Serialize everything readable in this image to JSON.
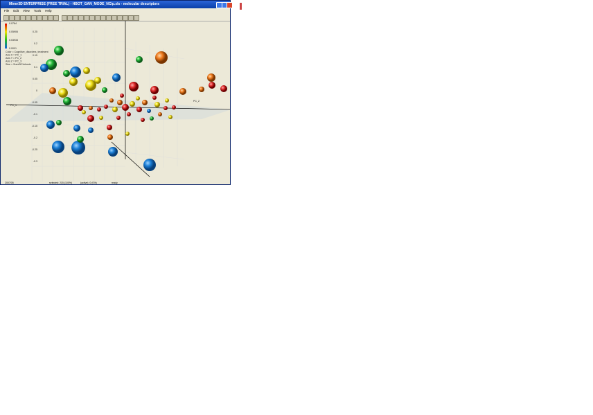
{
  "window": {
    "title": "Miner3D ENTERPRISE (FREE TRIAL) - HBOT_GAN_MODE_NCip.xls - molecular descriptors"
  },
  "menu": [
    "File",
    "Edit",
    "View",
    "Tools",
    "Help"
  ],
  "legend": {
    "scale": [
      "0.0784",
      "0.05906",
      "0.03933",
      "0.0001"
    ],
    "lines": [
      "Color = Cognitive_disorders_treatment",
      "Axis X = PC_1",
      "Axis Y = PC_2",
      "Axis Z = PC_3",
      "Size = SumOfCirrhosis"
    ]
  },
  "axes": {
    "x_label": "PC_1",
    "y_label": "PC_2",
    "y_ticks": [
      "0.25",
      "0.2",
      "0.15",
      "0.1",
      "0.05",
      "0",
      "-0.05",
      "-0.1",
      "-0.15",
      "-0.2",
      "-0.25",
      "-0.3"
    ]
  },
  "status": [
    "2007/05",
    "selected: 215 (100%)",
    "(active): 0 (0%)",
    "ready"
  ]
}
